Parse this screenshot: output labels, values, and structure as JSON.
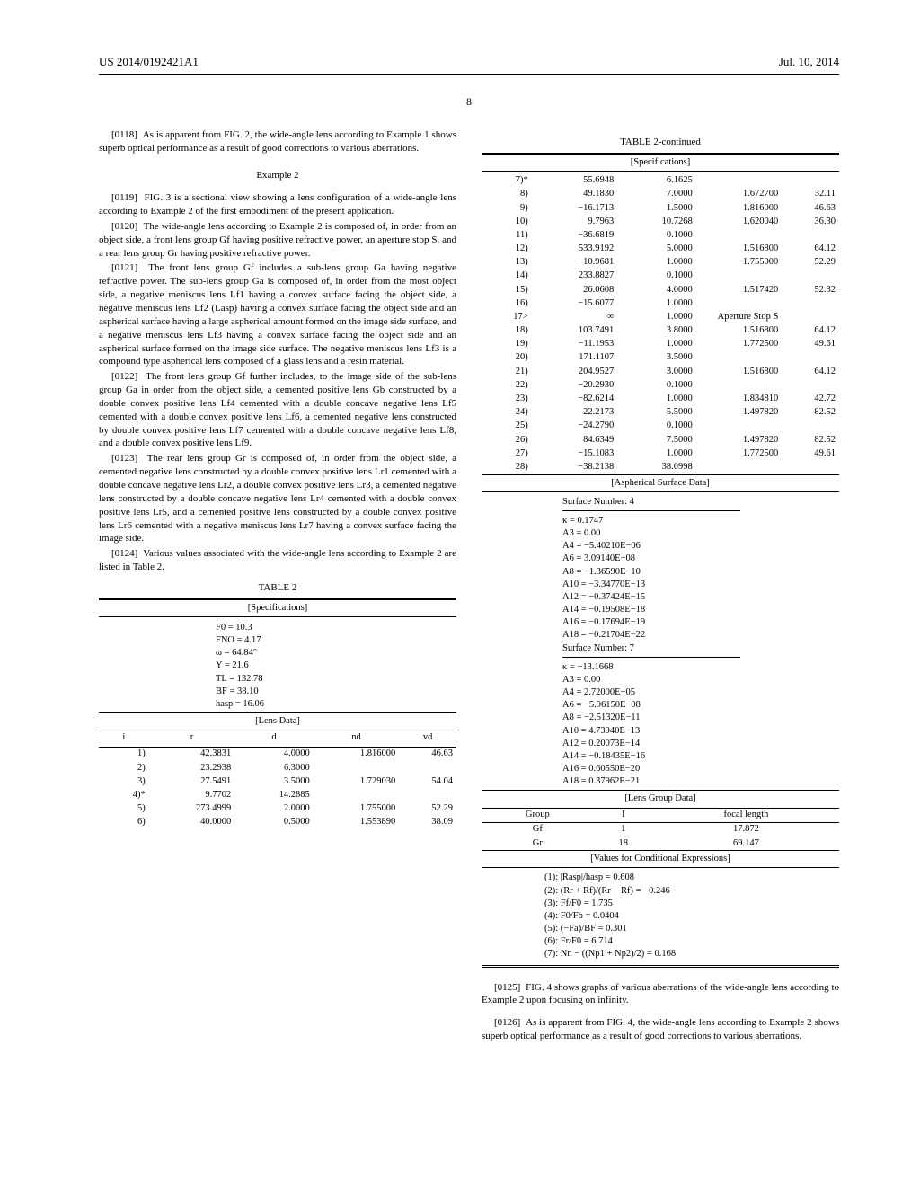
{
  "header": {
    "left": "US 2014/0192421A1",
    "right": "Jul. 10, 2014"
  },
  "pagenum": "8",
  "left": {
    "p0118": {
      "num": "[0118]",
      "text": "As is apparent from FIG. 2, the wide-angle lens according to Example 1 shows superb optical performance as a result of good corrections to various aberrations."
    },
    "example2": "Example 2",
    "p0119": {
      "num": "[0119]",
      "text": "FIG. 3 is a sectional view showing a lens configuration of a wide-angle lens according to Example 2 of the first embodiment of the present application."
    },
    "p0120": {
      "num": "[0120]",
      "text": "The wide-angle lens according to Example 2 is composed of, in order from an object side, a front lens group Gf having positive refractive power, an aperture stop S, and a rear lens group Gr having positive refractive power."
    },
    "p0121": {
      "num": "[0121]",
      "text": "The front lens group Gf includes a sub-lens group Ga having negative refractive power. The sub-lens group Ga is composed of, in order from the most object side, a negative meniscus lens Lf1 having a convex surface facing the object side, a negative meniscus lens Lf2 (Lasp) having a convex surface facing the object side and an aspherical surface having a large aspherical amount formed on the image side surface, and a negative meniscus lens Lf3 having a convex surface facing the object side and an aspherical surface formed on the image side surface. The negative meniscus lens Lf3 is a compound type aspherical lens composed of a glass lens and a resin material."
    },
    "p0122": {
      "num": "[0122]",
      "text": "The front lens group Gf further includes, to the image side of the sub-lens group Ga in order from the object side, a cemented positive lens Gb constructed by a double convex positive lens Lf4 cemented with a double concave negative lens Lf5 cemented with a double convex positive lens Lf6, a cemented negative lens constructed by double convex positive lens Lf7 cemented with a double concave negative lens Lf8, and a double convex positive lens Lf9."
    },
    "p0123": {
      "num": "[0123]",
      "text": "The rear lens group Gr is composed of, in order from the object side, a cemented negative lens constructed by a double convex positive lens Lr1 cemented with a double concave negative lens Lr2, a double convex positive lens Lr3, a cemented negative lens constructed by a double concave negative lens Lr4 cemented with a double convex positive lens Lr5, and a cemented positive lens constructed by a double convex positive lens Lr6 cemented with a negative meniscus lens Lr7 having a convex surface facing the image side."
    },
    "p0124": {
      "num": "[0124]",
      "text": "Various values associated with the wide-angle lens according to Example 2 are listed in Table 2."
    },
    "table2_title": "TABLE 2",
    "spec_label": "[Specifications]",
    "specs": [
      "F0 = 10.3",
      "FNO = 4.17",
      "ω = 64.84°",
      "Y = 21.6",
      "TL = 132.78",
      "BF = 38.10",
      "hasp = 16.06"
    ],
    "lensdata_label": "[Lens Data]",
    "lensdata_headers": [
      "i",
      "r",
      "d",
      "nd",
      "vd"
    ],
    "lensrows1": [
      [
        "1)",
        "42.3831",
        "4.0000",
        "1.816000",
        "46.63"
      ],
      [
        "2)",
        "23.2938",
        "6.3000",
        "",
        ""
      ],
      [
        "3)",
        "27.5491",
        "3.5000",
        "1.729030",
        "54.04"
      ],
      [
        "4)*",
        "9.7702",
        "14.2885",
        "",
        ""
      ],
      [
        "5)",
        "273.4999",
        "2.0000",
        "1.755000",
        "52.29"
      ],
      [
        "6)",
        "40.0000",
        "0.5000",
        "1.553890",
        "38.09"
      ]
    ]
  },
  "right": {
    "table2c_title": "TABLE 2-continued",
    "spec_label": "[Specifications]",
    "lensrows2": [
      [
        "7)*",
        "55.6948",
        "6.1625",
        "",
        ""
      ],
      [
        "8)",
        "49.1830",
        "7.0000",
        "1.672700",
        "32.11"
      ],
      [
        "9)",
        "−16.1713",
        "1.5000",
        "1.816000",
        "46.63"
      ],
      [
        "10)",
        "9.7963",
        "10.7268",
        "1.620040",
        "36.30"
      ],
      [
        "11)",
        "−36.6819",
        "0.1000",
        "",
        ""
      ],
      [
        "12)",
        "533.9192",
        "5.0000",
        "1.516800",
        "64.12"
      ],
      [
        "13)",
        "−10.9681",
        "1.0000",
        "1.755000",
        "52.29"
      ],
      [
        "14)",
        "233.8827",
        "0.1000",
        "",
        ""
      ],
      [
        "15)",
        "26.0608",
        "4.0000",
        "1.517420",
        "52.32"
      ],
      [
        "16)",
        "−15.6077",
        "1.0000",
        "",
        ""
      ],
      [
        "17>",
        "∞",
        "1.0000",
        "Aperture Stop S",
        ""
      ],
      [
        "18)",
        "103.7491",
        "3.8000",
        "1.516800",
        "64.12"
      ],
      [
        "19)",
        "−11.1953",
        "1.0000",
        "1.772500",
        "49.61"
      ],
      [
        "20)",
        "171.1107",
        "3.5000",
        "",
        ""
      ],
      [
        "21)",
        "204.9527",
        "3.0000",
        "1.516800",
        "64.12"
      ],
      [
        "22)",
        "−20.2930",
        "0.1000",
        "",
        ""
      ],
      [
        "23)",
        "−82.6214",
        "1.0000",
        "1.834810",
        "42.72"
      ],
      [
        "24)",
        "22.2173",
        "5.5000",
        "1.497820",
        "82.52"
      ],
      [
        "25)",
        "−24.2790",
        "0.1000",
        "",
        ""
      ],
      [
        "26)",
        "84.6349",
        "7.5000",
        "1.497820",
        "82.52"
      ],
      [
        "27)",
        "−15.1083",
        "1.0000",
        "1.772500",
        "49.61"
      ],
      [
        "28)",
        "−38.2138",
        "38.0998",
        "",
        ""
      ]
    ],
    "asph_label": "[Aspherical Surface Data]",
    "asph1_title": "Surface Number: 4",
    "asph1": [
      "κ = 0.1747",
      "A3 = 0.00",
      "A4 = −5.40210E−06",
      "A6 = 3.09140E−08",
      "A8 = −1.36590E−10",
      "A10 = −3.34770E−13",
      "A12 = −0.37424E−15",
      "A14 = −0.19508E−18",
      "A16 = −0.17694E−19",
      "A18 = −0.21704E−22",
      "Surface Number: 7"
    ],
    "asph2": [
      "κ = −13.1668",
      "A3 = 0.00",
      "A4 = 2.72000E−05",
      "A6 = −5.96150E−08",
      "A8 = −2.51320E−11",
      "A10 = 4.73940E−13",
      "A12 = 0.20073E−14",
      "A14 = −0.18435E−16",
      "A16 = 0.60550E−20",
      "A18 = 0.37962E−21"
    ],
    "lensgroup_label": "[Lens Group Data]",
    "lensgroup_headers": [
      "Group",
      "I",
      "focal length"
    ],
    "lensgroup_rows": [
      [
        "Gf",
        "1",
        "17.872"
      ],
      [
        "Gr",
        "18",
        "69.147"
      ]
    ],
    "cond_label": "[Values for Conditional Expressions]",
    "cond": [
      "(1): |Rasp|/hasp = 0.608",
      "(2): (Rr + Rf)/(Rr − Rf) = −0.246",
      "(3): Ff/F0 = 1.735",
      "(4): F0/Fb = 0.0404",
      "(5): (−Fa)/BF = 0.301",
      "(6): Fr/F0 = 6.714",
      "(7): Nn − ((Np1 + Np2)/2) = 0.168"
    ],
    "p0125": {
      "num": "[0125]",
      "text": "FIG. 4 shows graphs of various aberrations of the wide-angle lens according to Example 2 upon focusing on infinity."
    },
    "p0126": {
      "num": "[0126]",
      "text": "As is apparent from FIG. 4, the wide-angle lens according to Example 2 shows superb optical performance as a result of good corrections to various aberrations."
    }
  }
}
